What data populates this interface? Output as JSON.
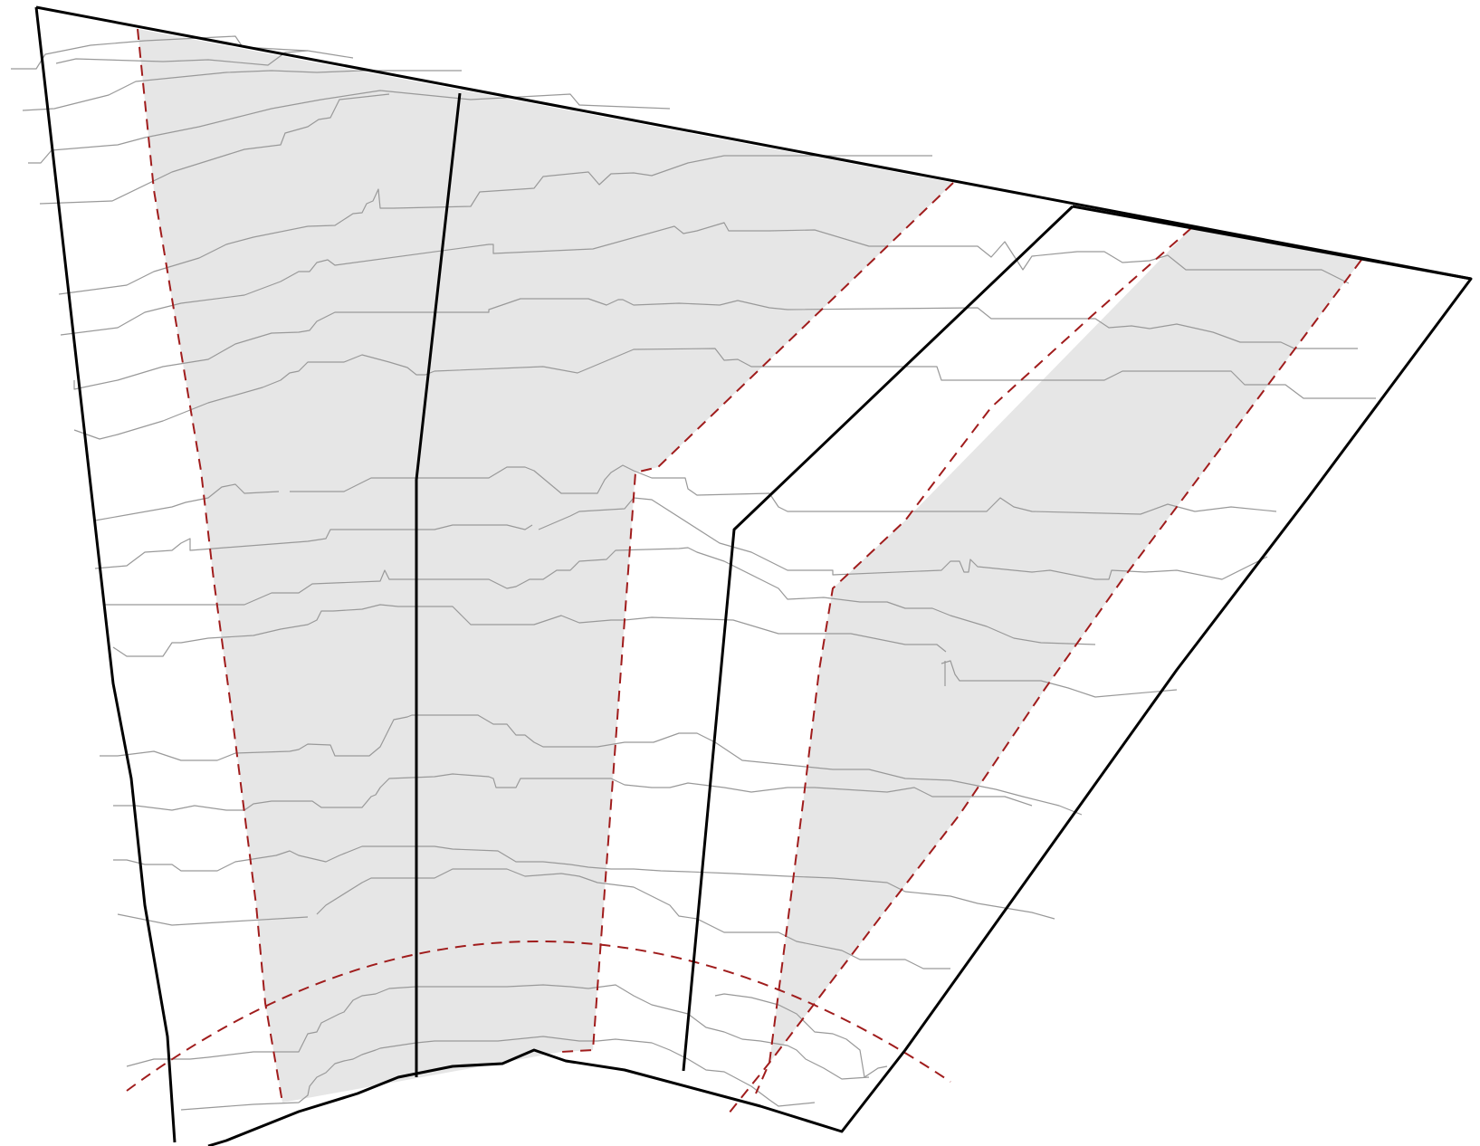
{
  "diagram": {
    "description_labels": [],
    "colors": {
      "band_fill": "#e6e6e6",
      "contour": "#999999",
      "boundary": "#000000",
      "dashed_line": "#a01c1c",
      "background": "#ffffff"
    },
    "elements": {
      "shaded_bands": 2,
      "contour_lines": 20,
      "solid_boundaries": 4,
      "dashed_lines": 5
    }
  }
}
